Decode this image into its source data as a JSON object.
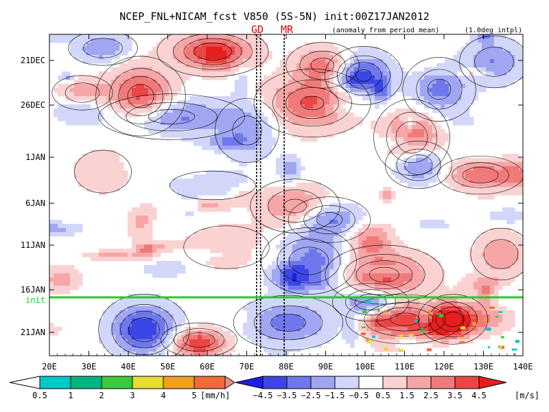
{
  "chart_data": {
    "type": "heatmap",
    "title": "NCEP_FNL+NICAM_fcst V850 (5S-5N) init:00Z17JAN2012",
    "annotations": {
      "anomaly_note": "(anomaly from period mean)",
      "interp_note": "(1.0deg intpl)",
      "marker_left": "GD",
      "marker_right": "MR",
      "init_label": "init"
    },
    "x_axis": {
      "ticks": [
        "20E",
        "30E",
        "40E",
        "50E",
        "60E",
        "70E",
        "80E",
        "90E",
        "100E",
        "110E",
        "120E",
        "130E",
        "140E"
      ],
      "range": [
        20,
        140
      ]
    },
    "y_axis": {
      "ticks": [
        "21DEC",
        "26DEC",
        "1JAN",
        "6JAN",
        "11JAN",
        "16JAN",
        "21JAN"
      ],
      "init_date": "17JAN"
    },
    "vertical_lines_lon": [
      72.5,
      73.5,
      79.5
    ],
    "colorbar_precip": {
      "labels": [
        "0.5",
        "1",
        "2",
        "3",
        "4",
        "5"
      ],
      "unit": "[mm/h]",
      "colors": [
        "#00c8c8",
        "#00b482",
        "#3cc83c",
        "#e6dc32",
        "#f0a020",
        "#f06a3a",
        "#f08a8a"
      ]
    },
    "colorbar_wind": {
      "labels": [
        "−4.5",
        "−3.5",
        "−2.5",
        "−1.5",
        "−0.5",
        "0.5",
        "1.5",
        "2.5",
        "3.5",
        "4.5"
      ],
      "unit": "[m/s]",
      "colors": [
        "#1e1ee6",
        "#3c46e6",
        "#6e78ec",
        "#a0a6f2",
        "#d2d6f8",
        "#ffffff",
        "#fad2d2",
        "#f6a6a6",
        "#f07a7a",
        "#eb4646",
        "#e61e1e"
      ]
    }
  }
}
